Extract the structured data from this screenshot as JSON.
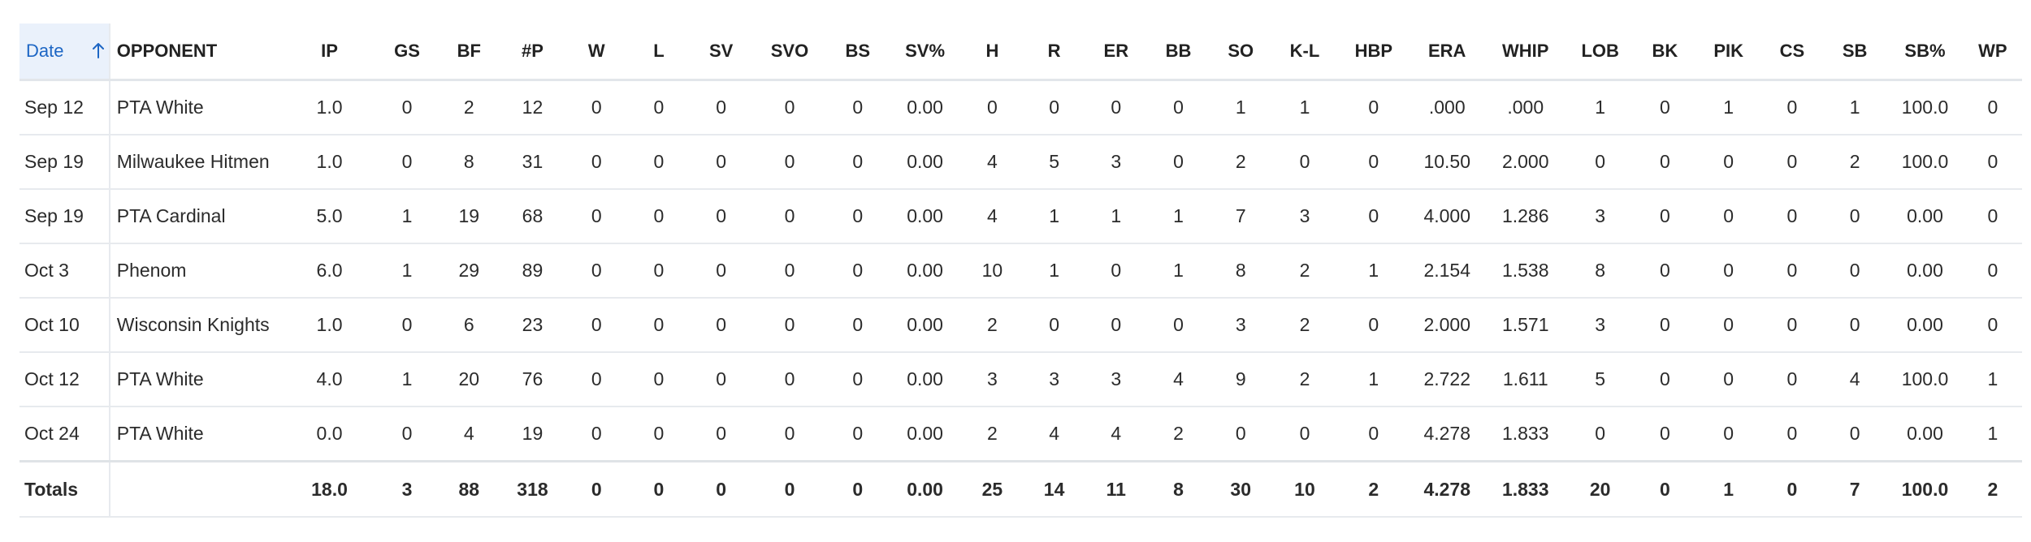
{
  "colors": {
    "sort_header_bg": "#eaf1fb",
    "sort_header_text": "#1d66c4",
    "row_divider": "#e7eaee"
  },
  "header": {
    "date_label": "Date",
    "sort_icon": "arrow-up-icon",
    "columns": [
      "OPPONENT",
      "IP",
      "GS",
      "BF",
      "#P",
      "W",
      "L",
      "SV",
      "SVO",
      "BS",
      "SV%",
      "H",
      "R",
      "ER",
      "BB",
      "SO",
      "K-L",
      "HBP",
      "ERA",
      "WHIP",
      "LOB",
      "BK",
      "PIK",
      "CS",
      "SB",
      "SB%",
      "WP"
    ]
  },
  "rows": [
    {
      "date": "Sep 12",
      "opponent": "PTA White",
      "cells": [
        "1.0",
        "0",
        "2",
        "12",
        "0",
        "0",
        "0",
        "0",
        "0",
        "0.00",
        "0",
        "0",
        "0",
        "0",
        "1",
        "1",
        "0",
        ".000",
        ".000",
        "1",
        "0",
        "1",
        "0",
        "1",
        "100.0",
        "0"
      ]
    },
    {
      "date": "Sep 19",
      "opponent": "Milwaukee Hitmen",
      "cells": [
        "1.0",
        "0",
        "8",
        "31",
        "0",
        "0",
        "0",
        "0",
        "0",
        "0.00",
        "4",
        "5",
        "3",
        "0",
        "2",
        "0",
        "0",
        "10.50",
        "2.000",
        "0",
        "0",
        "0",
        "0",
        "2",
        "100.0",
        "0"
      ]
    },
    {
      "date": "Sep 19",
      "opponent": "PTA Cardinal",
      "cells": [
        "5.0",
        "1",
        "19",
        "68",
        "0",
        "0",
        "0",
        "0",
        "0",
        "0.00",
        "4",
        "1",
        "1",
        "1",
        "7",
        "3",
        "0",
        "4.000",
        "1.286",
        "3",
        "0",
        "0",
        "0",
        "0",
        "0.00",
        "0"
      ]
    },
    {
      "date": "Oct 3",
      "opponent": "Phenom",
      "cells": [
        "6.0",
        "1",
        "29",
        "89",
        "0",
        "0",
        "0",
        "0",
        "0",
        "0.00",
        "10",
        "1",
        "0",
        "1",
        "8",
        "2",
        "1",
        "2.154",
        "1.538",
        "8",
        "0",
        "0",
        "0",
        "0",
        "0.00",
        "0"
      ]
    },
    {
      "date": "Oct 10",
      "opponent": "Wisconsin Knights",
      "cells": [
        "1.0",
        "0",
        "6",
        "23",
        "0",
        "0",
        "0",
        "0",
        "0",
        "0.00",
        "2",
        "0",
        "0",
        "0",
        "3",
        "2",
        "0",
        "2.000",
        "1.571",
        "3",
        "0",
        "0",
        "0",
        "0",
        "0.00",
        "0"
      ]
    },
    {
      "date": "Oct 12",
      "opponent": "PTA White",
      "cells": [
        "4.0",
        "1",
        "20",
        "76",
        "0",
        "0",
        "0",
        "0",
        "0",
        "0.00",
        "3",
        "3",
        "3",
        "4",
        "9",
        "2",
        "1",
        "2.722",
        "1.611",
        "5",
        "0",
        "0",
        "0",
        "4",
        "100.0",
        "1"
      ]
    },
    {
      "date": "Oct 24",
      "opponent": "PTA White",
      "cells": [
        "0.0",
        "0",
        "4",
        "19",
        "0",
        "0",
        "0",
        "0",
        "0",
        "0.00",
        "2",
        "4",
        "4",
        "2",
        "0",
        "0",
        "0",
        "4.278",
        "1.833",
        "0",
        "0",
        "0",
        "0",
        "0",
        "0.00",
        "1"
      ]
    }
  ],
  "totals": {
    "label": "Totals",
    "opponent": "",
    "cells": [
      "18.0",
      "3",
      "88",
      "318",
      "0",
      "0",
      "0",
      "0",
      "0",
      "0.00",
      "25",
      "14",
      "11",
      "8",
      "30",
      "10",
      "2",
      "4.278",
      "1.833",
      "20",
      "0",
      "1",
      "0",
      "7",
      "100.0",
      "2"
    ]
  }
}
